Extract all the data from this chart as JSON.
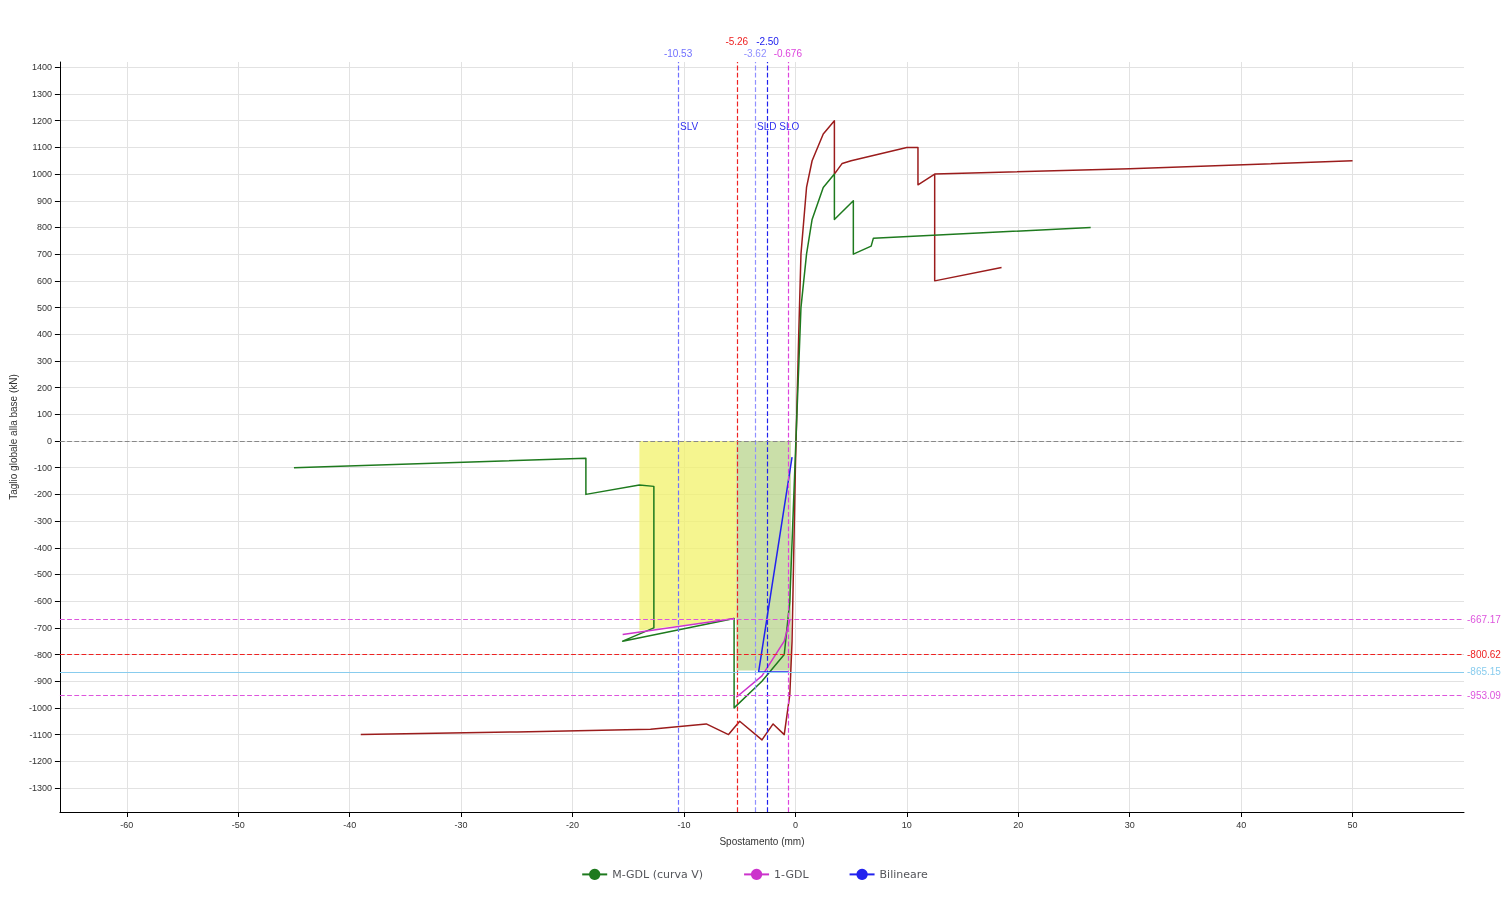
{
  "chart_data": {
    "type": "line",
    "xlabel": "Spostamento (mm)",
    "ylabel": "Taglio globale alla base (kN)",
    "xlim": [
      -66,
      60
    ],
    "xticks": [
      -60,
      -50,
      -40,
      -30,
      -20,
      -10,
      0,
      10,
      20,
      30,
      40,
      50
    ],
    "ylim": [
      -1390,
      1420
    ],
    "yticks": [
      -1300,
      -1200,
      -1100,
      -1000,
      -900,
      -800,
      -700,
      -600,
      -500,
      -400,
      -300,
      -200,
      -100,
      0,
      100,
      200,
      300,
      400,
      500,
      600,
      700,
      800,
      900,
      1000,
      1100,
      1200,
      1300,
      1400
    ],
    "grid": true,
    "legend": "bottom",
    "line_style": "solid",
    "series": [
      {
        "type": "area",
        "color": "#f2f26a",
        "x": [
          -14,
          -5.3
        ],
        "values": [
          -710,
          -665
        ]
      },
      {
        "type": "area",
        "color": "#b8d48c",
        "x": [
          -5.3,
          -0.4
        ],
        "values": [
          -860,
          -860
        ]
      },
      {
        "color": "#9b1c1c",
        "x": [
          -39,
          -25,
          -13,
          -8,
          -6,
          -5,
          -3,
          -2,
          -1,
          -0.5,
          -0.3,
          0,
          0.3,
          0.5,
          1,
          1.5,
          2.5,
          3.5,
          3.5,
          4.2,
          5,
          10,
          11,
          11,
          12.5,
          30,
          50,
          null,
          12.5,
          12.5,
          18.5
        ],
        "values": [
          -1100,
          -1090,
          -1080,
          -1060,
          -1100,
          -1050,
          -1120,
          -1060,
          -1100,
          -950,
          -750,
          -100,
          400,
          700,
          950,
          1050,
          1150,
          1200,
          1000,
          1040,
          1050,
          1100,
          1100,
          960,
          1000,
          1020,
          1050,
          null,
          1000,
          600,
          650
        ]
      },
      {
        "name": "M-GDL (curva V)",
        "color": "#1e7a1e",
        "x": [
          -45,
          -18.8,
          -18.8,
          -14,
          -12.7,
          -12.7,
          -15.5,
          -5.5,
          -5.5,
          -3,
          -1,
          -0.5,
          0,
          0.5,
          1,
          1.5,
          2.5,
          3.5,
          3.5,
          5.2,
          5.2,
          6.8,
          7,
          26.5
        ],
        "values": [
          -100,
          -65,
          -200,
          -165,
          -170,
          -700,
          -750,
          -665,
          -1000,
          -900,
          -800,
          -600,
          -50,
          500,
          700,
          830,
          950,
          1000,
          830,
          900,
          700,
          730,
          760,
          800
        ]
      },
      {
        "name": "1-GDL",
        "color": "#cc33cc",
        "x": [
          -15.5,
          -5.5,
          null,
          -5.3,
          -3,
          -1,
          -0.5
        ],
        "values": [
          -725,
          -665,
          null,
          -960,
          -880,
          -750,
          -670
        ]
      },
      {
        "name": "Bilineare",
        "color": "#2222ee",
        "x": [
          -0.3,
          -3.3,
          -0.6
        ],
        "values": [
          -60,
          -865,
          -865
        ]
      }
    ],
    "ref_lines": [
      {
        "axis": "x",
        "value": -10.53,
        "label": "-10.53",
        "color": "#7070ff",
        "line_style": "dashed"
      },
      {
        "axis": "x",
        "value": -5.26,
        "label": "-5.26",
        "color": "#ee2222",
        "line_style": "dashed"
      },
      {
        "axis": "x",
        "value": -3.62,
        "label": "-3.62",
        "color": "#9090ff",
        "line_style": "dashed"
      },
      {
        "axis": "x",
        "value": -2.5,
        "label": "-2.50",
        "color": "#2020ee",
        "line_style": "dashed"
      },
      {
        "axis": "x",
        "value": -0.676,
        "label": "-0.676",
        "color": "#dd44dd",
        "line_style": "dashed"
      },
      {
        "axis": "y",
        "value": -667.17,
        "label": "-667.17",
        "color": "#dd55dd",
        "line_style": "dashed"
      },
      {
        "axis": "y",
        "value": -800.62,
        "label": "-800.62",
        "color": "#ee2222",
        "line_style": "dashed"
      },
      {
        "axis": "y",
        "value": -865.15,
        "label": "-865.15",
        "color": "#88ccee",
        "line_style": "solid"
      },
      {
        "axis": "y",
        "value": -953.09,
        "label": "-953.09",
        "color": "#dd55dd",
        "line_style": "dashed"
      },
      {
        "axis": "y",
        "value": 0,
        "label": null,
        "color": "#888888",
        "line_style": "dashed"
      }
    ],
    "annotations": [
      {
        "text": "SLV",
        "x": -10.53,
        "y": 1180
      },
      {
        "text": "SLD SLO",
        "x": -3.62,
        "y": 1180
      }
    ]
  }
}
